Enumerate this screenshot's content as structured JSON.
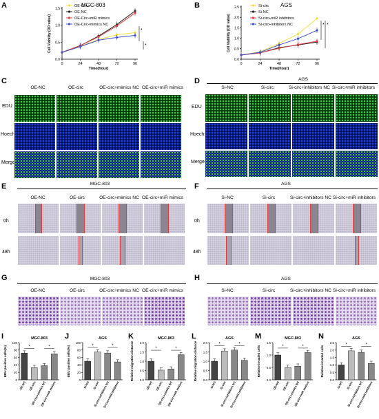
{
  "panels": {
    "A": "A",
    "B": "B",
    "C": "C",
    "D": "D",
    "E": "E",
    "F": "F",
    "G": "G",
    "H": "H",
    "I": "I",
    "J": "J",
    "K": "K",
    "L": "L",
    "M": "M",
    "N": "N"
  },
  "colors": {
    "oe_circ": "#f0e040",
    "oe_nc": "#222222",
    "mimics": "#e04040",
    "mimics_nc": "#4050d0",
    "bar_dark": "#444444",
    "bar_mid": "#888888",
    "bar_light": "#bbbbbb"
  },
  "chart_data": [
    {
      "id": "A",
      "type": "line",
      "title": "MGC-803",
      "xlabel": "Time(hour)",
      "ylabel": "Cell Viability (OD value)",
      "x": [
        0,
        24,
        48,
        72,
        96
      ],
      "ylim": [
        0,
        1.5
      ],
      "yticks": [
        0,
        0.5,
        1.0,
        1.5
      ],
      "series": [
        {
          "name": "OE-Circ",
          "color": "#f0e040",
          "values": [
            0.2,
            0.38,
            0.58,
            0.72,
            0.78
          ]
        },
        {
          "name": "OE-NC",
          "color": "#222222",
          "values": [
            0.2,
            0.4,
            0.68,
            1.02,
            1.42
          ]
        },
        {
          "name": "OE-Circ+miR mimics",
          "color": "#e04040",
          "values": [
            0.2,
            0.4,
            0.66,
            0.98,
            1.36
          ]
        },
        {
          "name": "OE-Circ+mimics NC",
          "color": "#4050d0",
          "values": [
            0.2,
            0.37,
            0.56,
            0.64,
            0.7
          ]
        }
      ],
      "annotations": [
        "*",
        "*"
      ]
    },
    {
      "id": "B",
      "type": "line",
      "title": "AGS",
      "xlabel": "Time(hour)",
      "ylabel": "Cell Viability (OD value)",
      "x": [
        0,
        24,
        48,
        72,
        96
      ],
      "ylim": [
        0,
        2.5
      ],
      "yticks": [
        0,
        0.5,
        1.0,
        1.5,
        2.0,
        2.5
      ],
      "series": [
        {
          "name": "Si-circ",
          "color": "#f0e040",
          "values": [
            0.2,
            0.35,
            0.75,
            1.2,
            1.95
          ]
        },
        {
          "name": "Si-NC",
          "color": "#222222",
          "values": [
            0.2,
            0.3,
            0.55,
            0.68,
            0.82
          ]
        },
        {
          "name": "Si-circ+miR inhibitors",
          "color": "#e04040",
          "values": [
            0.2,
            0.3,
            0.52,
            0.7,
            0.86
          ]
        },
        {
          "name": "Si-circ+inhibitors NC",
          "color": "#4050d0",
          "values": [
            0.2,
            0.33,
            0.68,
            0.98,
            1.38
          ]
        }
      ],
      "annotations": [
        "*",
        "*"
      ]
    },
    {
      "id": "I",
      "type": "bar",
      "title": "MGC-803",
      "ylabel": "EDU positive cells(%)",
      "categories": [
        "OE-NC",
        "OE-circ",
        "OE-circ+mimics NC",
        "OE-circ+miR mimics"
      ],
      "values": [
        72,
        33,
        38,
        70
      ],
      "ylim": [
        0,
        100
      ],
      "yticks": [
        0,
        20,
        40,
        60,
        80,
        100
      ],
      "annotations": [
        "*",
        "*"
      ]
    },
    {
      "id": "J",
      "type": "bar",
      "title": "AGS",
      "ylabel": "EDU positive cells(%)",
      "categories": [
        "Si-NC",
        "Si-circ",
        "Si-circ+inhibitors NC",
        "Si-circ+miR inhibitors"
      ],
      "values": [
        50,
        75,
        72,
        48
      ],
      "ylim": [
        0,
        100
      ],
      "yticks": [
        0,
        20,
        40,
        60,
        80,
        100
      ],
      "annotations": [
        "*",
        "*"
      ]
    },
    {
      "id": "K",
      "type": "bar",
      "title": "MGC-803",
      "ylabel": "Relative migration distance",
      "categories": [
        "OE-NC",
        "OE-circ",
        "OE-circ+mimics NC",
        "OE-circ+miR mimics"
      ],
      "values": [
        1.0,
        0.52,
        0.58,
        1.35
      ],
      "ylim": [
        0,
        2.0
      ],
      "yticks": [
        0.0,
        0.5,
        1.0,
        1.5,
        2.0
      ],
      "annotations": [
        "*",
        "*"
      ]
    },
    {
      "id": "L",
      "type": "bar",
      "title": "AGS",
      "ylabel": "Relative migration distance",
      "categories": [
        "Si-NC",
        "Si-circ",
        "Si-circ+inhibitors NC",
        "Si-circ+miR inhibitors"
      ],
      "values": [
        1.0,
        1.55,
        1.6,
        1.05
      ],
      "ylim": [
        0,
        2.0
      ],
      "yticks": [
        0.0,
        0.5,
        1.0,
        1.5,
        2.0
      ],
      "annotations": [
        "*",
        "*"
      ]
    },
    {
      "id": "M",
      "type": "bar",
      "title": "MGC-803",
      "ylabel": "Relative invaded cells",
      "categories": [
        "OE-NC",
        "OE-circ",
        "OE-circ+mimics NC",
        "OE-circ+miR mimics"
      ],
      "values": [
        1.0,
        0.5,
        0.55,
        1.1
      ],
      "ylim": [
        0,
        1.5
      ],
      "yticks": [
        0.0,
        0.5,
        1.0,
        1.5
      ],
      "annotations": [
        "*",
        "*"
      ]
    },
    {
      "id": "N",
      "type": "bar",
      "title": "AGS",
      "ylabel": "Relative invaded cells",
      "categories": [
        "Si-NC",
        "Si-circ",
        "Si-circ+inhibitors NC",
        "Si-circ+miR inhibitors"
      ],
      "values": [
        1.0,
        1.95,
        1.85,
        1.1
      ],
      "ylim": [
        0,
        2.5
      ],
      "yticks": [
        0.0,
        0.5,
        1.0,
        1.5,
        2.0,
        2.5
      ],
      "annotations": [
        "*",
        "*"
      ]
    }
  ],
  "edu_left": {
    "headers": [
      "OE-NC",
      "OE-circ",
      "OE-circ+mimics NC",
      "OE-circ+miR mimics"
    ],
    "rows": [
      "EDU",
      "Hoechst",
      "Merge"
    ]
  },
  "edu_right": {
    "title": "AGS",
    "headers": [
      "Si-NC",
      "Si-circ",
      "Si-circ+inhibitors NC",
      "Si-circ+miR inhibitors"
    ],
    "rows": [
      "EDU",
      "Hoechst",
      "Merge"
    ]
  },
  "wound_left": {
    "title": "MGC-803",
    "headers": [
      "OE-NC",
      "OE-circ",
      "OE-circ+mimics NC",
      "OE-circ+miR mimics"
    ],
    "rows": [
      "0h",
      "48h"
    ]
  },
  "wound_right": {
    "title": "AGS",
    "headers": [
      "Si-NC",
      "Si-circ",
      "Si-circ+inhibitors NC",
      "Si-circ+miR inhibitors"
    ],
    "rows": [
      "0h",
      "48h"
    ]
  },
  "trans_left": {
    "title": "MGC-803",
    "headers": [
      "OE-NC",
      "OE-circ",
      "OE-circ+mimics NC",
      "OE-circ+miR mimics"
    ]
  },
  "trans_right": {
    "title": "AGS",
    "headers": [
      "Si-NC",
      "Si-circ",
      "Si-circ+inhibitors NC",
      "Si-circ+miR inhibitors"
    ]
  }
}
